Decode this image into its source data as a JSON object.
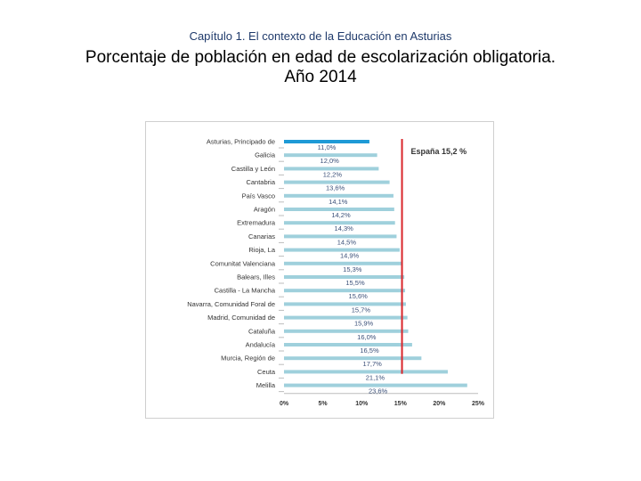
{
  "header": {
    "chapter": "Capítulo 1. El contexto de la Educación en Asturias",
    "title_line1": "Porcentaje de población en edad de escolarización obligatoria.",
    "title_line2": "Año 2014"
  },
  "chart_data": {
    "type": "bar",
    "orientation": "horizontal",
    "categories": [
      "Asturias, Principado de",
      "Galicia",
      "Castilla y León",
      "Cantabria",
      "País Vasco",
      "Aragón",
      "Extremadura",
      "Canarias",
      "Rioja, La",
      "Comunitat Valenciana",
      "Balears, Illes",
      "Castilla - La Mancha",
      "Navarra, Comunidad Foral de",
      "Madrid, Comunidad de",
      "Cataluña",
      "Andalucía",
      "Murcia, Región de",
      "Ceuta",
      "Melilla"
    ],
    "values": [
      11.0,
      12.0,
      12.2,
      13.6,
      14.1,
      14.2,
      14.3,
      14.5,
      14.9,
      15.3,
      15.5,
      15.6,
      15.7,
      15.9,
      16.0,
      16.5,
      17.7,
      21.1,
      23.6
    ],
    "value_labels": [
      "11,0%",
      "12,0%",
      "12,2%",
      "13,6%",
      "14,1%",
      "14,2%",
      "14,3%",
      "14,5%",
      "14,9%",
      "15,3%",
      "15,5%",
      "15,6%",
      "15,7%",
      "15,9%",
      "16,0%",
      "16,5%",
      "17,7%",
      "21,1%",
      "23,6%"
    ],
    "xlim": [
      0,
      25
    ],
    "x_ticks": [
      "0%",
      "5%",
      "10%",
      "15%",
      "20%",
      "25%"
    ],
    "reference_line": {
      "label": "España  15,2  %",
      "value": 15.2,
      "color": "#d9262b"
    },
    "colors": {
      "bar": "#9fd0dc",
      "highlight_bar": "#1e9ad6"
    },
    "highlight_index": 0,
    "grid": false
  }
}
